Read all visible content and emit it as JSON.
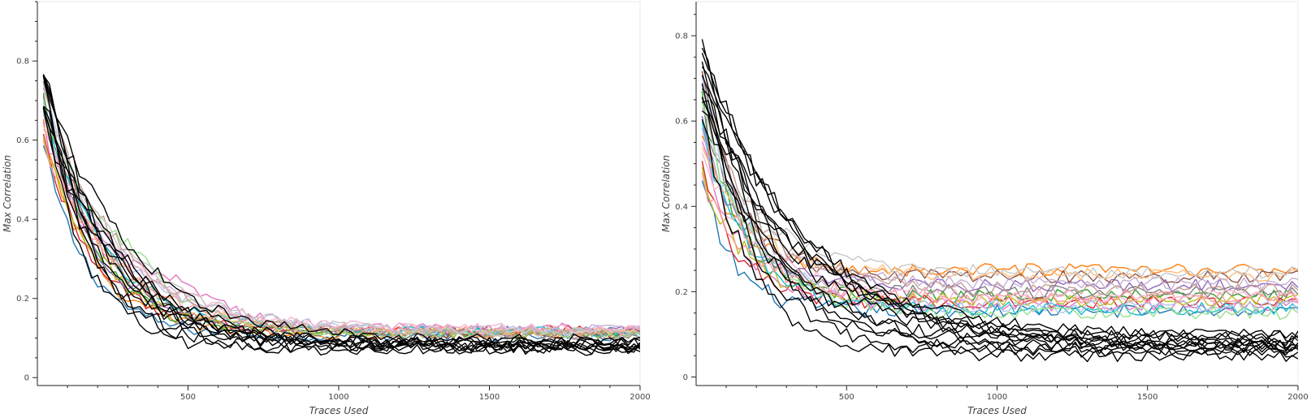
{
  "chart_data": [
    {
      "type": "line",
      "title": "",
      "xlabel": "Traces Used",
      "ylabel": "Max Correlation",
      "xlim": [
        0,
        2000
      ],
      "ylim": [
        -0.02,
        0.95
      ],
      "xticks": [
        500,
        1000,
        1500,
        2000
      ],
      "yticks": [
        0,
        0.2,
        0.4,
        0.6,
        0.8
      ],
      "ytick_labels": [
        "0",
        "0.2",
        "0.4",
        "0.6",
        "0.8"
      ],
      "grid": false,
      "legend": "none",
      "colored_group": {
        "colors": [
          "#1f77b4",
          "#ff7f0e",
          "#2ca02c",
          "#d62728",
          "#9467bd",
          "#8c564b",
          "#e377c2",
          "#7f7f7f",
          "#bcbd22",
          "#17becf",
          "#aec7e8",
          "#ffbb78",
          "#98df8a",
          "#ff9896",
          "#c5b0d5",
          "#c49c94",
          "#f7b6d2",
          "#c7c7c7"
        ],
        "start_range": [
          0.58,
          0.75
        ],
        "final_values": [
          0.105,
          0.11,
          0.115,
          0.12,
          0.118,
          0.112,
          0.125,
          0.108,
          0.11,
          0.116,
          0.12,
          0.113,
          0.109,
          0.118,
          0.122,
          0.107,
          0.124,
          0.114
        ]
      },
      "black_group": {
        "color": "#000000",
        "count": 10,
        "start_range": [
          0.7,
          0.86
        ],
        "final_values": [
          0.07,
          0.075,
          0.08,
          0.085,
          0.09,
          0.078,
          0.088,
          0.072,
          0.083,
          0.095
        ]
      }
    },
    {
      "type": "line",
      "title": "",
      "xlabel": "Traces Used",
      "ylabel": "Max Correlation",
      "xlim": [
        0,
        2000
      ],
      "ylim": [
        -0.02,
        0.88
      ],
      "xticks": [
        500,
        1000,
        1500,
        2000
      ],
      "yticks": [
        0,
        0.2,
        0.4,
        0.6,
        0.8
      ],
      "ytick_labels": [
        "0",
        "0.2",
        "0.4",
        "0.6",
        "0.8"
      ],
      "grid": false,
      "legend": "none",
      "colored_group": {
        "colors": [
          "#1f77b4",
          "#ff7f0e",
          "#2ca02c",
          "#d62728",
          "#9467bd",
          "#8c564b",
          "#e377c2",
          "#7f7f7f",
          "#bcbd22",
          "#17becf",
          "#aec7e8",
          "#ffbb78",
          "#98df8a",
          "#ff9896",
          "#c5b0d5",
          "#c49c94",
          "#f7b6d2",
          "#c7c7c7"
        ],
        "start_range": [
          0.45,
          0.72
        ],
        "final_values": [
          0.155,
          0.25,
          0.19,
          0.175,
          0.215,
          0.235,
          0.17,
          0.2,
          0.18,
          0.16,
          0.165,
          0.24,
          0.15,
          0.185,
          0.22,
          0.205,
          0.19,
          0.245
        ]
      },
      "black_group": {
        "color": "#000000",
        "count": 12,
        "start_range": [
          0.62,
          0.82
        ],
        "final_values": [
          0.05,
          0.06,
          0.065,
          0.07,
          0.075,
          0.08,
          0.085,
          0.09,
          0.095,
          0.1,
          0.072,
          0.068
        ]
      }
    }
  ]
}
